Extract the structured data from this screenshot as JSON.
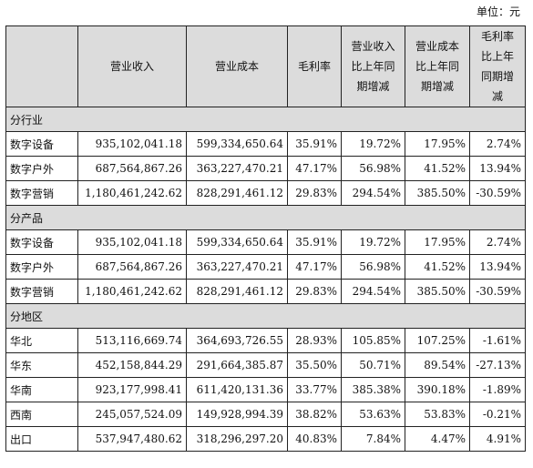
{
  "unit_label": "单位：元",
  "headers": [
    [],
    [
      "营业收入"
    ],
    [
      "营业成本"
    ],
    [
      "毛利率"
    ],
    [
      "营业收入",
      "比上年同",
      "期增减"
    ],
    [
      "营业成本",
      "比上年同",
      "期增减"
    ],
    [
      "毛利率",
      "比上年",
      "同期增",
      "减"
    ]
  ],
  "sections": [
    {
      "title": "分行业",
      "rows": [
        [
          "数字设备",
          "935,102,041.18",
          "599,334,650.64",
          "35.91%",
          "19.72%",
          "17.95%",
          "2.74%"
        ],
        [
          "数字户外",
          "687,564,867.26",
          "363,227,470.21",
          "47.17%",
          "56.98%",
          "41.52%",
          "13.94%"
        ],
        [
          "数字营销",
          "1,180,461,242.62",
          "828,291,461.12",
          "29.83%",
          "294.54%",
          "385.50%",
          "-30.59%"
        ]
      ]
    },
    {
      "title": "分产品",
      "rows": [
        [
          "数字设备",
          "935,102,041.18",
          "599,334,650.64",
          "35.91%",
          "19.72%",
          "17.95%",
          "2.74%"
        ],
        [
          "数字户外",
          "687,564,867.26",
          "363,227,470.21",
          "47.17%",
          "56.98%",
          "41.52%",
          "13.94%"
        ],
        [
          "数字营销",
          "1,180,461,242.62",
          "828,291,461.12",
          "29.83%",
          "294.54%",
          "385.50%",
          "-30.59%"
        ]
      ]
    },
    {
      "title": "分地区",
      "rows": [
        [
          "华北",
          "513,116,669.74",
          "364,693,726.55",
          "28.93%",
          "105.85%",
          "107.25%",
          "-1.61%"
        ],
        [
          "华东",
          "452,158,844.29",
          "291,664,385.87",
          "35.50%",
          "50.71%",
          "89.54%",
          "-27.13%"
        ],
        [
          "华南",
          "923,177,998.41",
          "611,420,131.36",
          "33.77%",
          "385.38%",
          "390.18%",
          "-1.89%"
        ],
        [
          "西南",
          "245,057,524.09",
          "149,928,994.39",
          "38.82%",
          "53.63%",
          "53.83%",
          "-0.21%"
        ],
        [
          "出口",
          "537,947,480.62",
          "318,296,297.20",
          "40.83%",
          "7.84%",
          "4.47%",
          "4.91%"
        ]
      ]
    }
  ]
}
